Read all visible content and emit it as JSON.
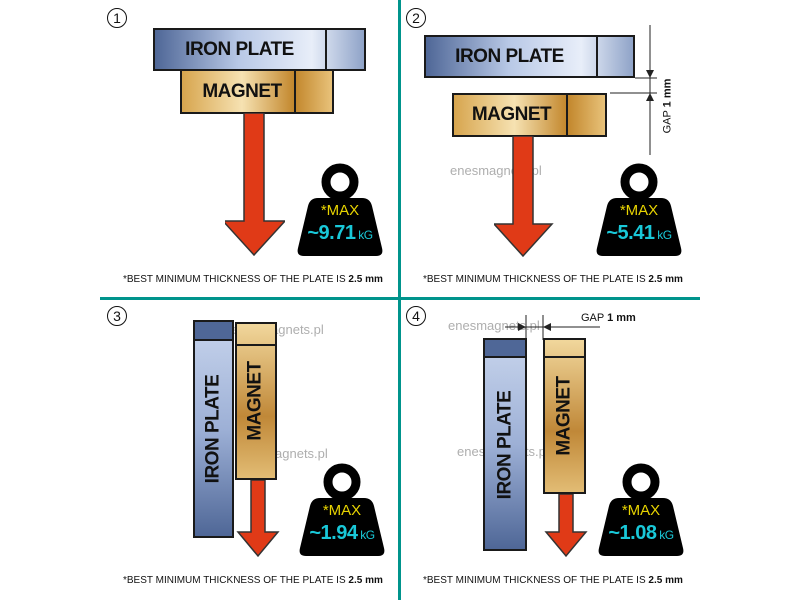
{
  "watermark": "enesmagnets.pl",
  "colors": {
    "divider": "#00948c",
    "max_label": "#e8d400",
    "value": "#19c8d8",
    "arrow": "#e03a17"
  },
  "quadrants": [
    {
      "number": "1",
      "iron_label": "IRON PLATE",
      "magnet_label": "MAGNET",
      "max_label": "*MAX",
      "value": "~9.71",
      "unit": "kG",
      "footnote": "*BEST MINIMUM THICKNESS OF THE PLATE IS",
      "footnote_bold": "2.5 mm"
    },
    {
      "number": "2",
      "iron_label": "IRON PLATE",
      "magnet_label": "MAGNET",
      "max_label": "*MAX",
      "value": "~5.41",
      "unit": "kG",
      "gap_label": "GAP",
      "gap_value": "1 mm",
      "footnote": "*BEST MINIMUM THICKNESS OF THE PLATE IS",
      "footnote_bold": "2.5 mm"
    },
    {
      "number": "3",
      "iron_label": "IRON  PLATE",
      "magnet_label": "MAGNET",
      "max_label": "*MAX",
      "value": "~1.94",
      "unit": "kG",
      "footnote": "*BEST MINIMUM THICKNESS OF THE PLATE IS",
      "footnote_bold": "2.5 mm"
    },
    {
      "number": "4",
      "iron_label": "IRON PLATE",
      "magnet_label": "MAGNET",
      "max_label": "*MAX",
      "value": "~1.08",
      "unit": "kG",
      "gap_label": "GAP",
      "gap_value": "1 mm",
      "footnote": "*BEST MINIMUM THICKNESS OF THE PLATE IS",
      "footnote_bold": "2.5 mm"
    }
  ]
}
